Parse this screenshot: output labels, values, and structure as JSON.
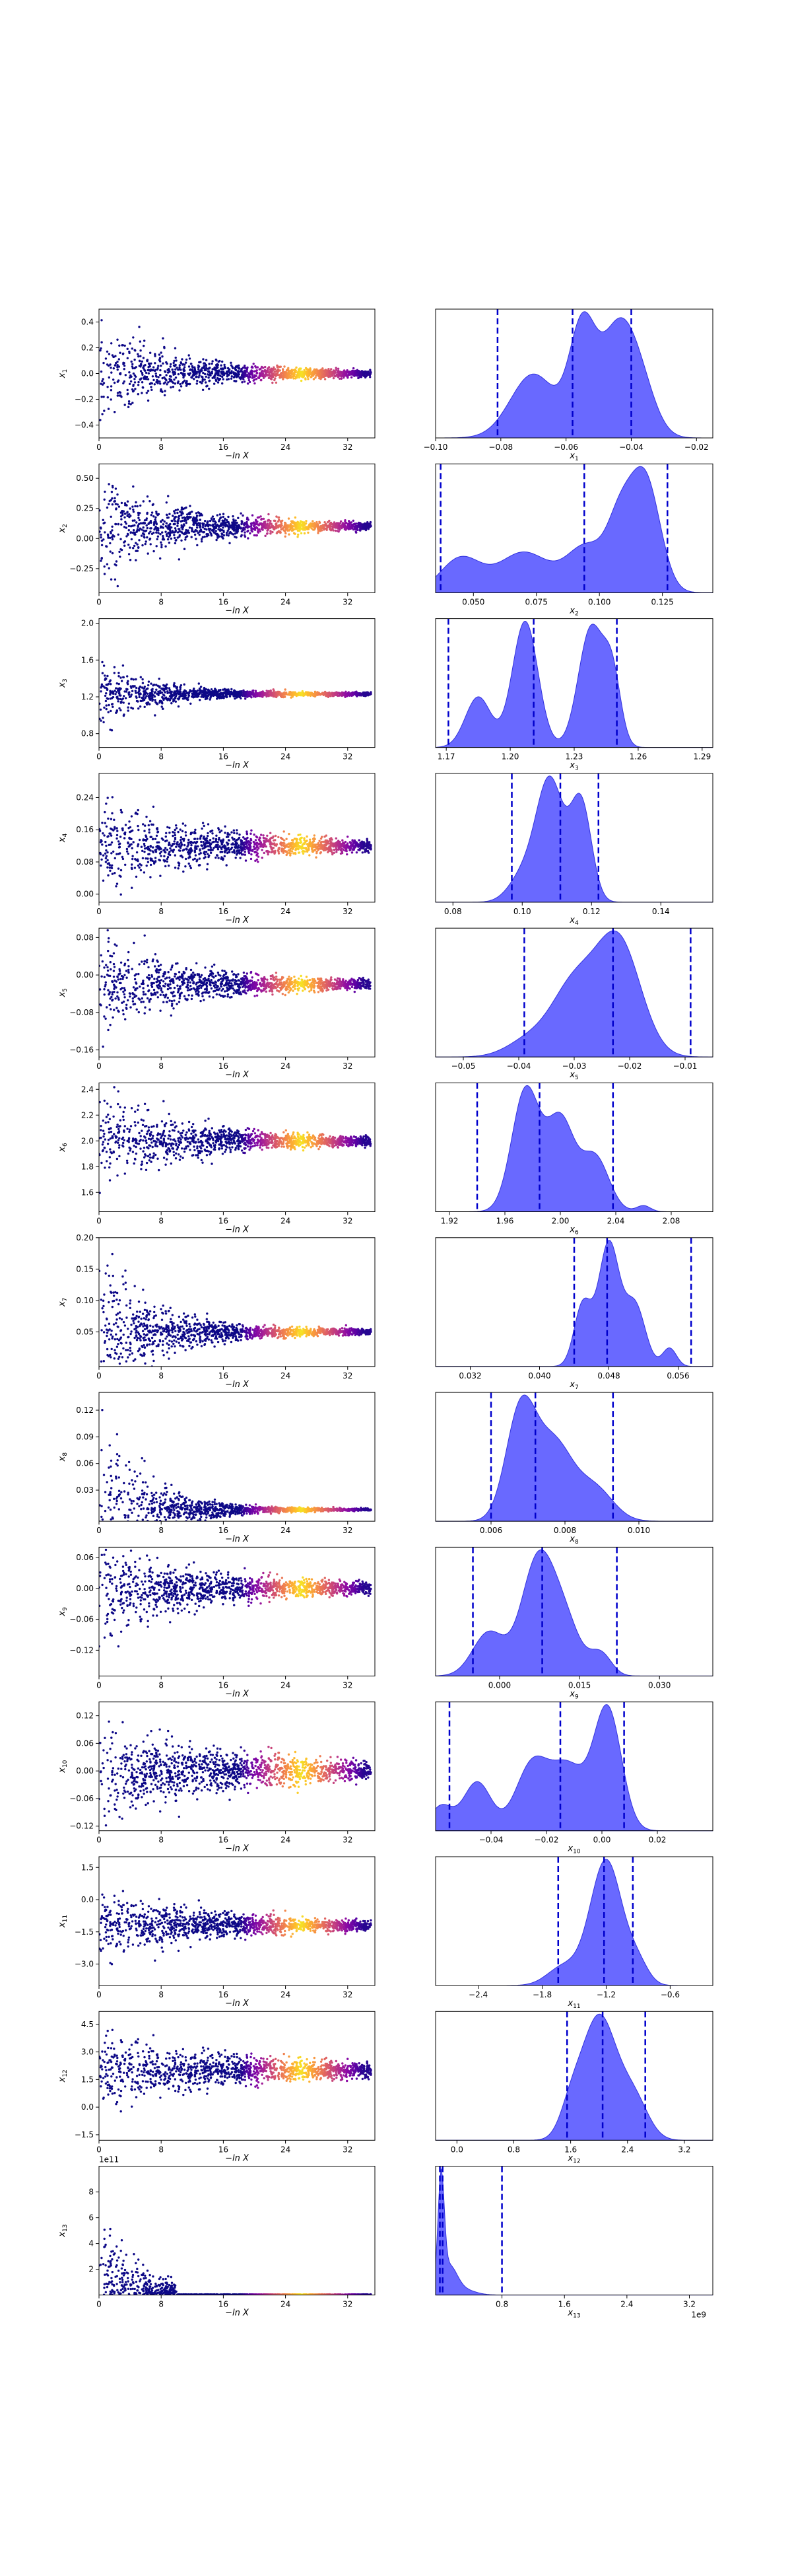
{
  "figure": {
    "colors": {
      "scatter_low": "#0d0887",
      "scatter_mid": "#cc4778",
      "scatter_high": "#f0f921",
      "kde_fill": "#5959ff",
      "kde_edge": "#3333dd",
      "quantile_line": "#0000cc"
    }
  },
  "chart_data": [
    {
      "type": "scatter",
      "panel": "trace",
      "param": "x1",
      "ylabel": "x1",
      "xlabel": "−ln X",
      "xlim": [
        0,
        35.5
      ],
      "ylim": [
        -0.5,
        0.5
      ],
      "xticks": [
        0,
        8,
        16,
        24,
        32
      ],
      "yticks": [
        -0.4,
        -0.2,
        0.0,
        0.2,
        0.4
      ],
      "ytick_labels": [
        "−0.4",
        "−0.2",
        "0.0",
        "0.2",
        "0.4"
      ],
      "center": 0.0,
      "init_spread": 0.45,
      "final_spread": 0.02,
      "decay": 9
    },
    {
      "type": "area",
      "panel": "kde",
      "param": "x1",
      "xlabel": "x1",
      "xlim": [
        -0.1,
        -0.015
      ],
      "xticks": [
        -0.1,
        -0.08,
        -0.06,
        -0.04,
        -0.02
      ],
      "xtick_labels": [
        "−0.10",
        "−0.08",
        "−0.06",
        "−0.04",
        "−0.02"
      ],
      "peaks": [
        [
          -0.07,
          0.007,
          0.6
        ],
        [
          -0.055,
          0.004,
          1.0
        ],
        [
          -0.045,
          0.005,
          0.85
        ],
        [
          -0.038,
          0.005,
          0.55
        ]
      ],
      "quantiles": [
        -0.081,
        -0.058,
        -0.04
      ]
    },
    {
      "type": "scatter",
      "panel": "trace",
      "param": "x2",
      "ylabel": "x2",
      "xlabel": "−ln X",
      "xlim": [
        0,
        35.5
      ],
      "ylim": [
        -0.45,
        0.62
      ],
      "xticks": [
        0,
        8,
        16,
        24,
        32
      ],
      "yticks": [
        -0.25,
        0.0,
        0.25,
        0.5
      ],
      "ytick_labels": [
        "−0.25",
        "0.00",
        "0.25",
        "0.50"
      ],
      "center": 0.1,
      "init_spread": 0.5,
      "final_spread": 0.03,
      "decay": 9
    },
    {
      "type": "area",
      "panel": "kde",
      "param": "x2",
      "xlabel": "x2",
      "xlim": [
        0.035,
        0.145
      ],
      "xticks": [
        0.05,
        0.075,
        0.1,
        0.125
      ],
      "xtick_labels": [
        "0.050",
        "0.075",
        "0.100",
        "0.125"
      ],
      "peaks": [
        [
          0.045,
          0.008,
          0.3
        ],
        [
          0.07,
          0.01,
          0.35
        ],
        [
          0.095,
          0.008,
          0.4
        ],
        [
          0.118,
          0.006,
          1.0
        ],
        [
          0.108,
          0.005,
          0.5
        ]
      ],
      "quantiles": [
        0.037,
        0.094,
        0.127
      ]
    },
    {
      "type": "scatter",
      "panel": "trace",
      "param": "x3",
      "ylabel": "x3",
      "xlabel": "−ln X",
      "xlim": [
        0,
        35.5
      ],
      "ylim": [
        0.65,
        2.05
      ],
      "xticks": [
        0,
        8,
        16,
        24,
        32
      ],
      "yticks": [
        0.8,
        1.2,
        1.6,
        2.0
      ],
      "ytick_labels": [
        "0.8",
        "1.2",
        "1.6",
        "2.0"
      ],
      "center": 1.23,
      "init_spread": 0.5,
      "final_spread": 0.02,
      "decay": 6
    },
    {
      "type": "area",
      "panel": "kde",
      "param": "x3",
      "xlabel": "x3",
      "xlim": [
        1.165,
        1.295
      ],
      "xticks": [
        1.17,
        1.2,
        1.23,
        1.26,
        1.29
      ],
      "xtick_labels": [
        "1.17",
        "1.20",
        "1.23",
        "1.26",
        "1.29"
      ],
      "peaks": [
        [
          1.185,
          0.006,
          0.4
        ],
        [
          1.207,
          0.006,
          1.0
        ],
        [
          1.238,
          0.006,
          0.95
        ],
        [
          1.248,
          0.004,
          0.5
        ]
      ],
      "quantiles": [
        1.171,
        1.211,
        1.25
      ]
    },
    {
      "type": "scatter",
      "panel": "trace",
      "param": "x4",
      "ylabel": "x4",
      "xlabel": "−ln X",
      "xlim": [
        0,
        35.5
      ],
      "ylim": [
        -0.02,
        0.3
      ],
      "xticks": [
        0,
        8,
        16,
        24,
        32
      ],
      "yticks": [
        0.0,
        0.08,
        0.16,
        0.24
      ],
      "ytick_labels": [
        "0.00",
        "0.08",
        "0.16",
        "0.24"
      ],
      "center": 0.12,
      "init_spread": 0.13,
      "final_spread": 0.01,
      "decay": 12
    },
    {
      "type": "area",
      "panel": "kde",
      "param": "x4",
      "xlabel": "x4",
      "xlim": [
        0.075,
        0.155
      ],
      "xticks": [
        0.08,
        0.1,
        0.12,
        0.14
      ],
      "xtick_labels": [
        "0.08",
        "0.10",
        "0.12",
        "0.14"
      ],
      "peaks": [
        [
          0.108,
          0.004,
          1.0
        ],
        [
          0.117,
          0.003,
          0.8
        ],
        [
          0.1,
          0.004,
          0.2
        ]
      ],
      "quantiles": [
        0.097,
        0.111,
        0.122
      ]
    },
    {
      "type": "scatter",
      "panel": "trace",
      "param": "x5",
      "ylabel": "x5",
      "xlabel": "−ln X",
      "xlim": [
        0,
        35.5
      ],
      "ylim": [
        -0.175,
        0.1
      ],
      "xticks": [
        0,
        8,
        16,
        24,
        32
      ],
      "yticks": [
        -0.16,
        -0.08,
        0.0,
        0.08
      ],
      "ytick_labels": [
        "−0.16",
        "−0.08",
        "0.00",
        "0.08"
      ],
      "center": -0.02,
      "init_spread": 0.12,
      "final_spread": 0.008,
      "decay": 10
    },
    {
      "type": "area",
      "panel": "kde",
      "param": "x5",
      "xlabel": "x5",
      "xlim": [
        -0.055,
        -0.005
      ],
      "xticks": [
        -0.05,
        -0.04,
        -0.03,
        -0.02,
        -0.01
      ],
      "xtick_labels": [
        "−0.05",
        "−0.04",
        "−0.03",
        "−0.02",
        "−0.01"
      ],
      "peaks": [
        [
          -0.03,
          0.004,
          0.6
        ],
        [
          -0.022,
          0.004,
          1.0
        ],
        [
          -0.038,
          0.004,
          0.15
        ]
      ],
      "quantiles": [
        -0.039,
        -0.023,
        -0.009
      ]
    },
    {
      "type": "scatter",
      "panel": "trace",
      "param": "x6",
      "ylabel": "x6",
      "xlabel": "−ln X",
      "xlim": [
        0,
        35.5
      ],
      "ylim": [
        1.45,
        2.45
      ],
      "xticks": [
        0,
        8,
        16,
        24,
        32
      ],
      "yticks": [
        1.6,
        1.8,
        2.0,
        2.2,
        2.4
      ],
      "ytick_labels": [
        "1.6",
        "1.8",
        "2.0",
        "2.2",
        "2.4"
      ],
      "center": 2.0,
      "init_spread": 0.4,
      "final_spread": 0.03,
      "decay": 10
    },
    {
      "type": "area",
      "panel": "kde",
      "param": "x6",
      "xlabel": "x6",
      "xlim": [
        1.91,
        2.11
      ],
      "xticks": [
        1.92,
        1.96,
        2.0,
        2.04,
        2.08
      ],
      "xtick_labels": [
        "1.92",
        "1.96",
        "2.00",
        "2.04",
        "2.08"
      ],
      "peaks": [
        [
          1.975,
          0.01,
          1.0
        ],
        [
          2.0,
          0.01,
          0.75
        ],
        [
          2.025,
          0.01,
          0.45
        ],
        [
          2.06,
          0.005,
          0.05
        ]
      ],
      "quantiles": [
        1.94,
        1.985,
        2.038
      ]
    },
    {
      "type": "scatter",
      "panel": "trace",
      "param": "x7",
      "ylabel": "x7",
      "xlabel": "−ln X",
      "xlim": [
        0,
        35.5
      ],
      "ylim": [
        -0.005,
        0.2
      ],
      "xticks": [
        0,
        8,
        16,
        24,
        32
      ],
      "yticks": [
        0.05,
        0.1,
        0.15,
        0.2
      ],
      "ytick_labels": [
        "0.05",
        "0.10",
        "0.15",
        "0.20"
      ],
      "center": 0.05,
      "init_spread": 0.14,
      "final_spread": 0.004,
      "decay": 7
    },
    {
      "type": "area",
      "panel": "kde",
      "param": "x7",
      "xlabel": "x7",
      "xlim": [
        0.028,
        0.06
      ],
      "xticks": [
        0.032,
        0.04,
        0.048,
        0.056
      ],
      "xtick_labels": [
        "0.032",
        "0.040",
        "0.048",
        "0.056"
      ],
      "peaks": [
        [
          0.048,
          0.0012,
          1.0
        ],
        [
          0.045,
          0.001,
          0.5
        ],
        [
          0.051,
          0.0012,
          0.5
        ],
        [
          0.055,
          0.0008,
          0.15
        ]
      ],
      "quantiles": [
        0.044,
        0.0478,
        0.0575
      ]
    },
    {
      "type": "scatter",
      "panel": "trace",
      "param": "x8",
      "ylabel": "x8",
      "xlabel": "−ln X",
      "xlim": [
        0,
        35.5
      ],
      "ylim": [
        -0.005,
        0.14
      ],
      "xticks": [
        0,
        8,
        16,
        24,
        32
      ],
      "yticks": [
        0.03,
        0.06,
        0.09,
        0.12
      ],
      "ytick_labels": [
        "0.03",
        "0.06",
        "0.09",
        "0.12"
      ],
      "center": 0.008,
      "init_spread": 0.11,
      "final_spread": 0.001,
      "decay": 6
    },
    {
      "type": "area",
      "panel": "kde",
      "param": "x8",
      "xlabel": "x8",
      "xlim": [
        0.0045,
        0.012
      ],
      "xticks": [
        0.006,
        0.008,
        0.01
      ],
      "xtick_labels": [
        "0.006",
        "0.008",
        "0.010"
      ],
      "peaks": [
        [
          0.0068,
          0.0004,
          1.0
        ],
        [
          0.0077,
          0.0005,
          0.7
        ],
        [
          0.0088,
          0.0005,
          0.3
        ]
      ],
      "quantiles": [
        0.006,
        0.0072,
        0.0093
      ]
    },
    {
      "type": "scatter",
      "panel": "trace",
      "param": "x9",
      "ylabel": "x9",
      "xlabel": "−ln X",
      "xlim": [
        0,
        35.5
      ],
      "ylim": [
        -0.17,
        0.08
      ],
      "xticks": [
        0,
        8,
        16,
        24,
        32
      ],
      "yticks": [
        -0.12,
        -0.06,
        0.0,
        0.06
      ],
      "ytick_labels": [
        "−0.12",
        "−0.06",
        "0.00",
        "0.06"
      ],
      "center": 0.0,
      "init_spread": 0.1,
      "final_spread": 0.008,
      "decay": 12
    },
    {
      "type": "area",
      "panel": "kde",
      "param": "x9",
      "xlabel": "x9",
      "xlim": [
        -0.012,
        0.04
      ],
      "xticks": [
        0.0,
        0.015,
        0.03
      ],
      "xtick_labels": [
        "0.000",
        "0.015",
        "0.030"
      ],
      "peaks": [
        [
          -0.002,
          0.003,
          0.4
        ],
        [
          0.007,
          0.003,
          1.0
        ],
        [
          0.012,
          0.003,
          0.5
        ],
        [
          0.019,
          0.002,
          0.2
        ]
      ],
      "quantiles": [
        -0.005,
        0.008,
        0.022
      ]
    },
    {
      "type": "scatter",
      "panel": "trace",
      "param": "x10",
      "ylabel": "x10",
      "xlabel": "−ln X",
      "xlim": [
        0,
        35.5
      ],
      "ylim": [
        -0.13,
        0.15
      ],
      "xticks": [
        0,
        8,
        16,
        24,
        32
      ],
      "yticks": [
        -0.12,
        -0.06,
        0.0,
        0.06,
        0.12
      ],
      "ytick_labels": [
        "−0.12",
        "−0.06",
        "0.00",
        "0.06",
        "0.12"
      ],
      "center": 0.0,
      "init_spread": 0.12,
      "final_spread": 0.015,
      "decay": 14
    },
    {
      "type": "area",
      "panel": "kde",
      "param": "x10",
      "xlabel": "x10",
      "xlim": [
        -0.06,
        0.04
      ],
      "xticks": [
        -0.04,
        -0.02,
        0.0,
        0.02
      ],
      "xtick_labels": [
        "−0.04",
        "−0.02",
        "0.00",
        "0.02"
      ],
      "peaks": [
        [
          -0.058,
          0.004,
          0.2
        ],
        [
          -0.045,
          0.005,
          0.4
        ],
        [
          -0.025,
          0.006,
          0.55
        ],
        [
          -0.012,
          0.006,
          0.5
        ],
        [
          0.002,
          0.005,
          1.0
        ]
      ],
      "quantiles": [
        -0.055,
        -0.015,
        0.008
      ]
    },
    {
      "type": "scatter",
      "panel": "trace",
      "param": "x11",
      "ylabel": "x11",
      "xlabel": "−ln X",
      "xlim": [
        0,
        35.5
      ],
      "ylim": [
        -4.0,
        2.0
      ],
      "xticks": [
        0,
        8,
        16,
        24,
        32
      ],
      "yticks": [
        -3.0,
        -1.5,
        0.0,
        1.5
      ],
      "ytick_labels": [
        "−3.0",
        "−1.5",
        "0.0",
        "1.5"
      ],
      "center": -1.2,
      "init_spread": 2.0,
      "final_spread": 0.15,
      "decay": 12
    },
    {
      "type": "area",
      "panel": "kde",
      "param": "x11",
      "xlabel": "x11",
      "xlim": [
        -2.8,
        -0.2
      ],
      "xticks": [
        -2.4,
        -1.8,
        -1.2,
        -0.6
      ],
      "xtick_labels": [
        "−2.4",
        "−1.8",
        "−1.2",
        "−0.6"
      ],
      "peaks": [
        [
          -1.2,
          0.15,
          1.0
        ],
        [
          -1.6,
          0.15,
          0.15
        ],
        [
          -0.9,
          0.1,
          0.15
        ]
      ],
      "quantiles": [
        -1.65,
        -1.22,
        -0.95
      ]
    },
    {
      "type": "scatter",
      "panel": "trace",
      "param": "x12",
      "ylabel": "x12",
      "xlabel": "−ln X",
      "xlim": [
        0,
        35.5
      ],
      "ylim": [
        -1.8,
        5.2
      ],
      "xticks": [
        0,
        8,
        16,
        24,
        32
      ],
      "yticks": [
        -1.5,
        0.0,
        1.5,
        3.0,
        4.5
      ],
      "ytick_labels": [
        "−1.5",
        "0.0",
        "1.5",
        "3.0",
        "4.5"
      ],
      "center": 2.0,
      "init_spread": 2.3,
      "final_spread": 0.3,
      "decay": 14
    },
    {
      "type": "area",
      "panel": "kde",
      "param": "x12",
      "xlabel": "x12",
      "xlim": [
        -0.3,
        3.6
      ],
      "xticks": [
        0.0,
        0.8,
        1.6,
        2.4,
        3.2
      ],
      "xtick_labels": [
        "0.0",
        "0.8",
        "1.6",
        "2.4",
        "3.2"
      ],
      "peaks": [
        [
          2.0,
          0.25,
          1.0
        ],
        [
          2.5,
          0.2,
          0.3
        ],
        [
          1.6,
          0.15,
          0.2
        ]
      ],
      "quantiles": [
        1.55,
        2.05,
        2.65
      ]
    },
    {
      "type": "scatter",
      "panel": "trace",
      "param": "x13",
      "ylabel": "x13",
      "xlabel": "−ln X",
      "xlim": [
        0,
        35.5
      ],
      "ylim": [
        0,
        10
      ],
      "xticks": [
        0,
        8,
        16,
        24,
        32
      ],
      "yticks": [
        2,
        4,
        6,
        8
      ],
      "ytick_labels": [
        "2",
        "4",
        "6",
        "8"
      ],
      "offset_text": "1e11",
      "center": 0.0,
      "init_spread": 9.0,
      "final_spread": 0.0,
      "decay": 5,
      "positive": true
    },
    {
      "type": "area",
      "panel": "kde",
      "param": "x13",
      "xlabel": "x13",
      "xlim": [
        -0.05,
        3.5
      ],
      "xticks": [
        0.8,
        1.6,
        2.4,
        3.2
      ],
      "xtick_labels": [
        "0.8",
        "1.6",
        "2.4",
        "3.2"
      ],
      "offset_text": "1e9",
      "peaks": [
        [
          0.02,
          0.04,
          1.0
        ],
        [
          0.12,
          0.1,
          0.25
        ],
        [
          0.3,
          0.15,
          0.05
        ]
      ],
      "quantiles": [
        0.005,
        0.04,
        0.8
      ]
    }
  ]
}
